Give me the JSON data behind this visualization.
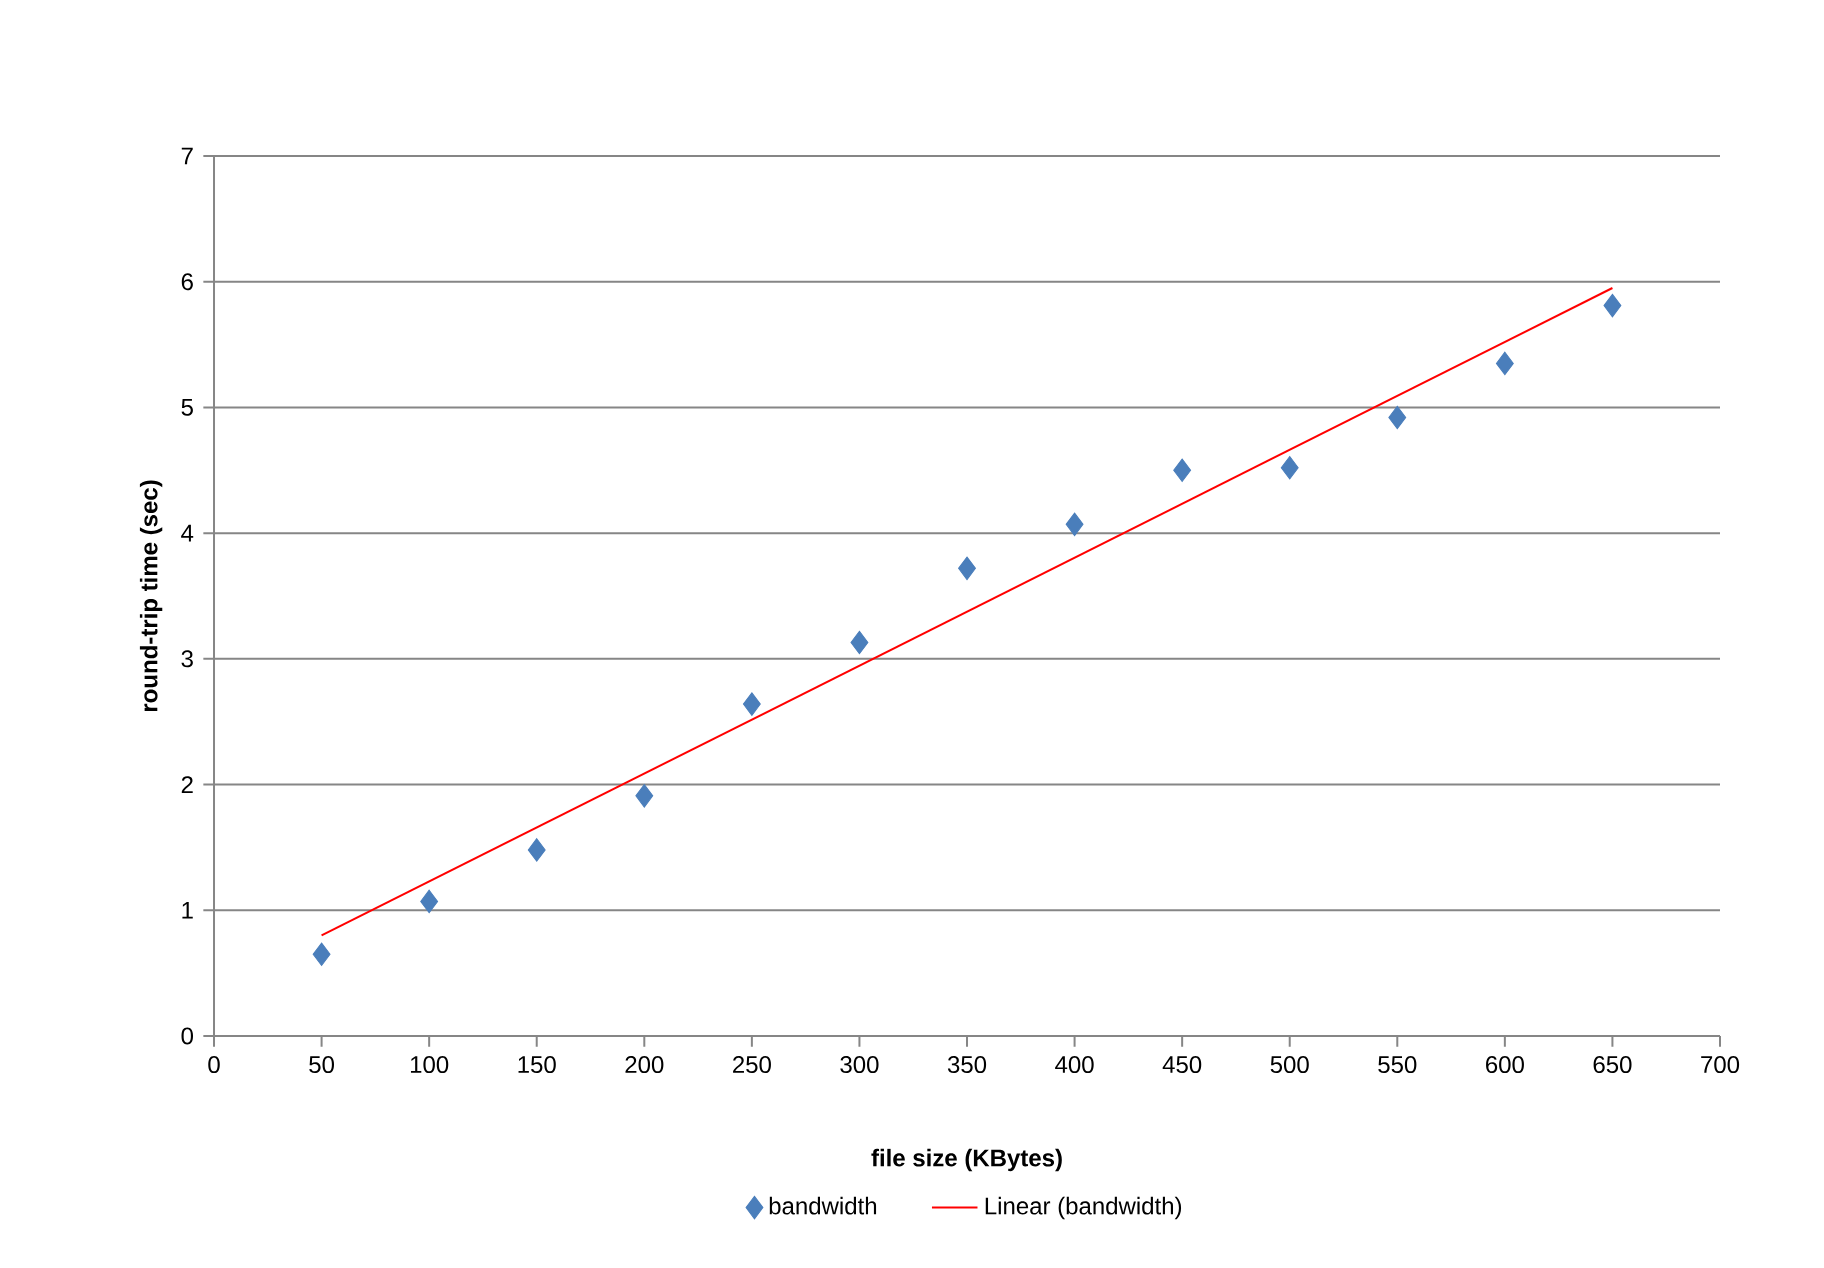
{
  "chart_data": {
    "type": "scatter",
    "xlabel": "file size (KBytes)",
    "ylabel": "round-trip time (sec)",
    "xlim": [
      0,
      700
    ],
    "ylim": [
      0,
      7
    ],
    "xticks": [
      0,
      50,
      100,
      150,
      200,
      250,
      300,
      350,
      400,
      450,
      500,
      550,
      600,
      650,
      700
    ],
    "yticks": [
      0,
      1,
      2,
      3,
      4,
      5,
      6,
      7
    ],
    "grid": "y",
    "legend": "bottom",
    "marker": "diamond",
    "series": [
      {
        "name": "bandwidth",
        "color": "#4a7ebb",
        "x": [
          50,
          100,
          150,
          200,
          250,
          300,
          350,
          400,
          450,
          500,
          550,
          600,
          650
        ],
        "values": [
          0.65,
          1.07,
          1.48,
          1.91,
          2.64,
          3.13,
          3.72,
          4.07,
          4.5,
          4.52,
          4.92,
          5.35,
          5.81
        ]
      },
      {
        "name": "Linear (bandwidth)",
        "type": "line",
        "marker": "none",
        "color": "#ff0000",
        "x": [
          50,
          650
        ],
        "values": [
          0.8,
          5.95
        ]
      }
    ]
  }
}
